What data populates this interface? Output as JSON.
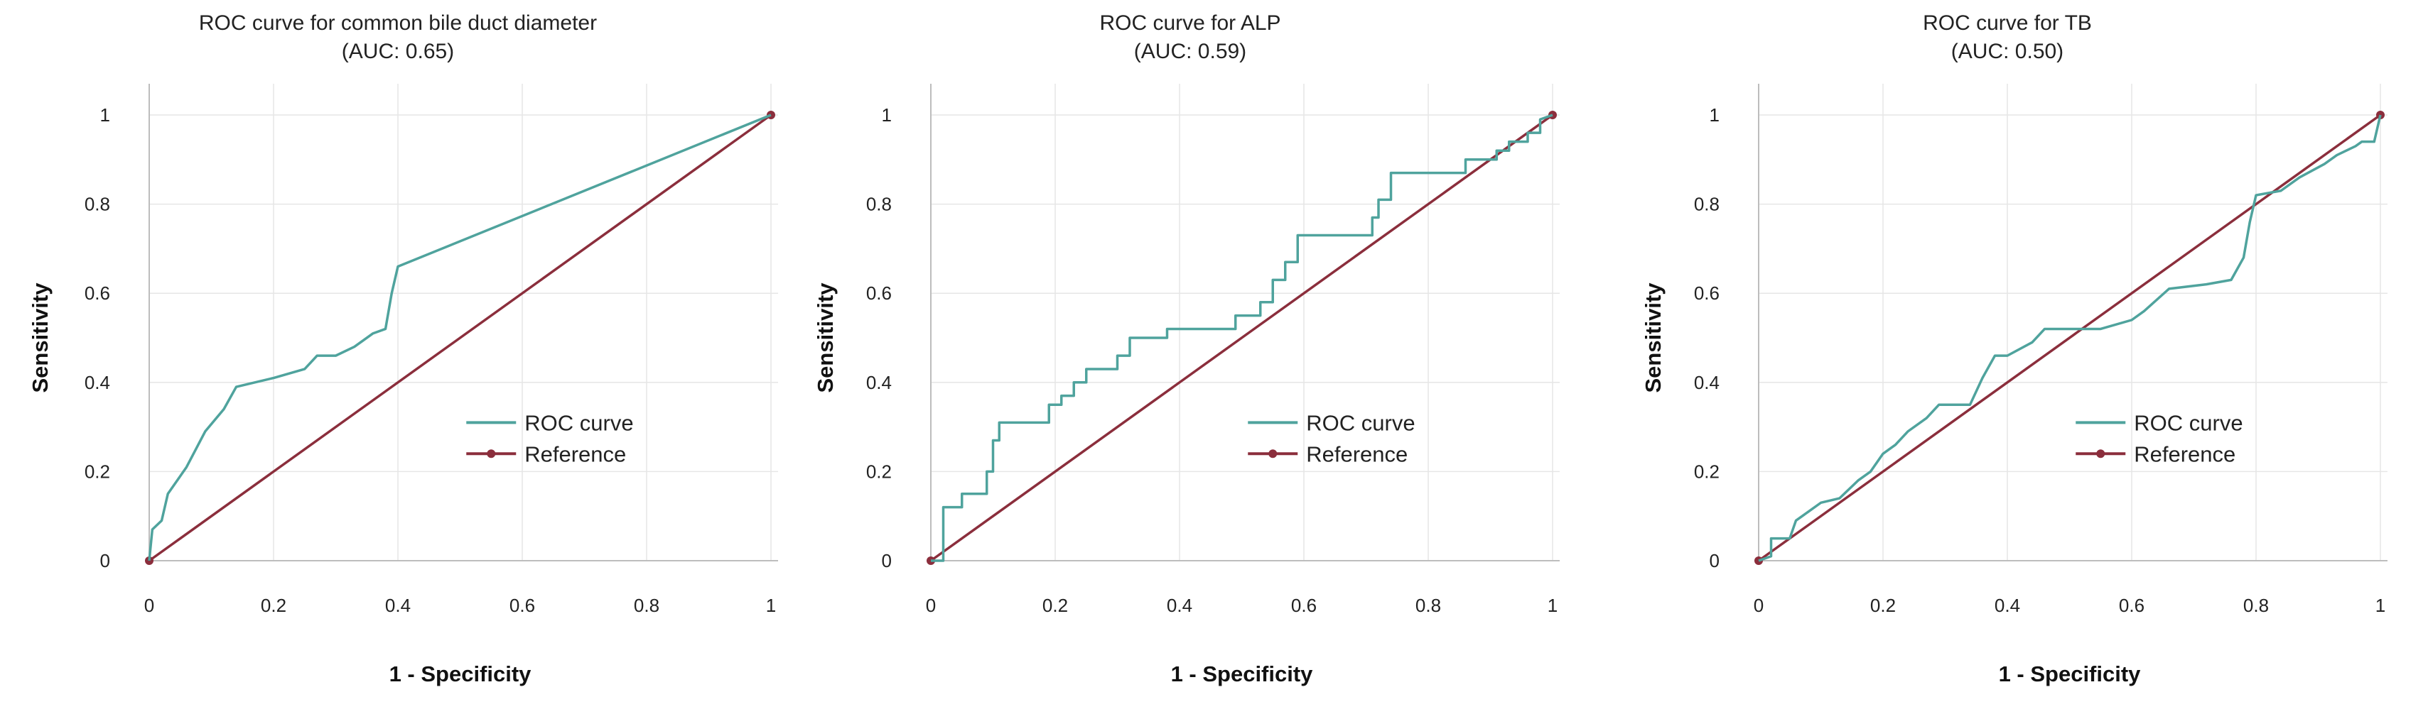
{
  "chart_data": [
    {
      "type": "line",
      "title": "ROC curve  for common bile duct diameter",
      "subtitle": "(AUC: 0.65)",
      "xlabel": "1 - Specificity",
      "ylabel": "Sensitivity",
      "xlim": [
        0,
        1
      ],
      "ylim": [
        0,
        1
      ],
      "x_ticks": [
        "0",
        "0.2",
        "0.4",
        "0.6",
        "0.8",
        "1"
      ],
      "y_ticks": [
        "0",
        "0.2",
        "0.4",
        "0.6",
        "0.8",
        "1"
      ],
      "grid": true,
      "legend_position": "center-right",
      "series": [
        {
          "name": "ROC curve",
          "color": "#4fa39d",
          "x": [
            0,
            0.005,
            0.02,
            0.03,
            0.06,
            0.09,
            0.12,
            0.14,
            0.2,
            0.25,
            0.27,
            0.3,
            0.33,
            0.36,
            0.38,
            0.39,
            0.4,
            1
          ],
          "y": [
            0,
            0.07,
            0.09,
            0.15,
            0.21,
            0.29,
            0.34,
            0.39,
            0.41,
            0.43,
            0.46,
            0.46,
            0.48,
            0.51,
            0.52,
            0.6,
            0.66,
            1
          ]
        },
        {
          "name": "Reference",
          "color": "#8b2e3c",
          "x": [
            0,
            1
          ],
          "y": [
            0,
            1
          ]
        }
      ]
    },
    {
      "type": "line",
      "title": "ROC curve  for ALP",
      "subtitle": "(AUC: 0.59)",
      "xlabel": "1 - Specificity",
      "ylabel": "Sensitivity",
      "xlim": [
        0,
        1
      ],
      "ylim": [
        0,
        1
      ],
      "x_ticks": [
        "0",
        "0.2",
        "0.4",
        "0.6",
        "0.8",
        "1"
      ],
      "y_ticks": [
        "0",
        "0.2",
        "0.4",
        "0.6",
        "0.8",
        "1"
      ],
      "grid": true,
      "legend_position": "center-right",
      "series": [
        {
          "name": "ROC curve",
          "color": "#4fa39d",
          "x": [
            0,
            0.02,
            0.02,
            0.05,
            0.05,
            0.09,
            0.09,
            0.1,
            0.1,
            0.11,
            0.11,
            0.19,
            0.19,
            0.21,
            0.21,
            0.23,
            0.23,
            0.25,
            0.25,
            0.3,
            0.3,
            0.32,
            0.32,
            0.38,
            0.38,
            0.49,
            0.49,
            0.53,
            0.53,
            0.55,
            0.55,
            0.57,
            0.57,
            0.59,
            0.59,
            0.71,
            0.71,
            0.72,
            0.72,
            0.74,
            0.74,
            0.86,
            0.86,
            0.91,
            0.91,
            0.93,
            0.93,
            0.96,
            0.96,
            0.98,
            0.98,
            1
          ],
          "y": [
            0,
            0,
            0.12,
            0.12,
            0.15,
            0.15,
            0.2,
            0.2,
            0.27,
            0.27,
            0.31,
            0.31,
            0.35,
            0.35,
            0.37,
            0.37,
            0.4,
            0.4,
            0.43,
            0.43,
            0.46,
            0.46,
            0.5,
            0.5,
            0.52,
            0.52,
            0.55,
            0.55,
            0.58,
            0.58,
            0.63,
            0.63,
            0.67,
            0.67,
            0.73,
            0.73,
            0.77,
            0.77,
            0.81,
            0.81,
            0.87,
            0.87,
            0.9,
            0.9,
            0.92,
            0.92,
            0.94,
            0.94,
            0.96,
            0.96,
            0.99,
            1
          ]
        },
        {
          "name": "Reference",
          "color": "#8b2e3c",
          "x": [
            0,
            1
          ],
          "y": [
            0,
            1
          ]
        }
      ]
    },
    {
      "type": "line",
      "title": "ROC curve  for TB",
      "subtitle": "(AUC: 0.50)",
      "xlabel": "1 - Specificity",
      "ylabel": "Sensitivity",
      "xlim": [
        0,
        1
      ],
      "ylim": [
        0,
        1
      ],
      "x_ticks": [
        "0",
        "0.2",
        "0.4",
        "0.6",
        "0.8",
        "1"
      ],
      "y_ticks": [
        "0",
        "0.2",
        "0.4",
        "0.6",
        "0.8",
        "1"
      ],
      "grid": true,
      "legend_position": "center-right",
      "series": [
        {
          "name": "ROC curve",
          "color": "#4fa39d",
          "x": [
            0,
            0.02,
            0.02,
            0.05,
            0.06,
            0.08,
            0.1,
            0.13,
            0.16,
            0.18,
            0.2,
            0.22,
            0.24,
            0.27,
            0.29,
            0.34,
            0.36,
            0.38,
            0.4,
            0.44,
            0.46,
            0.52,
            0.55,
            0.6,
            0.62,
            0.66,
            0.72,
            0.76,
            0.78,
            0.79,
            0.8,
            0.84,
            0.87,
            0.91,
            0.93,
            0.96,
            0.97,
            0.99,
            1
          ],
          "y": [
            0,
            0.01,
            0.05,
            0.05,
            0.09,
            0.11,
            0.13,
            0.14,
            0.18,
            0.2,
            0.24,
            0.26,
            0.29,
            0.32,
            0.35,
            0.35,
            0.41,
            0.46,
            0.46,
            0.49,
            0.52,
            0.52,
            0.52,
            0.54,
            0.56,
            0.61,
            0.62,
            0.63,
            0.68,
            0.76,
            0.82,
            0.83,
            0.86,
            0.89,
            0.91,
            0.93,
            0.94,
            0.94,
            1
          ]
        },
        {
          "name": "Reference",
          "color": "#8b2e3c",
          "x": [
            0,
            1
          ],
          "y": [
            0,
            1
          ]
        }
      ]
    }
  ]
}
